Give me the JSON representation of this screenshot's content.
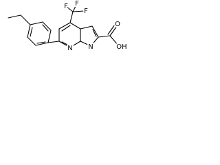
{
  "atoms": [
    {
      "label": "F"
    },
    {
      "label": "F"
    },
    {
      "label": "F"
    },
    {
      "label": "N"
    },
    {
      "label": "N"
    },
    {
      "label": "O"
    },
    {
      "label": "OH"
    }
  ]
}
